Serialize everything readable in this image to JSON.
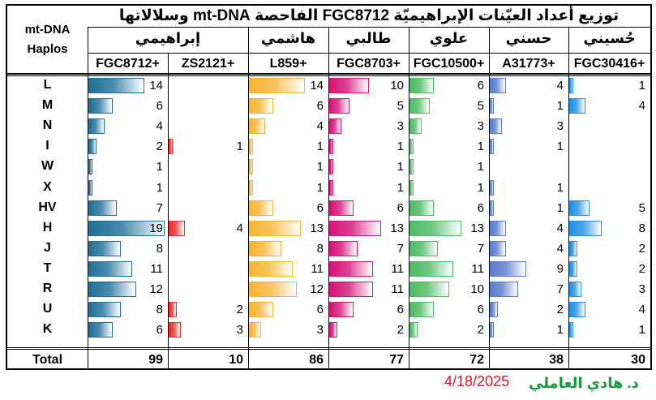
{
  "title": "توزيع أعداد العيّنات الإبراهيميّة FGC8712 الفاحصة mt-DNA وسلالاتها",
  "row_header": "mt-DNA Haplos",
  "row_header_line1": "mt-DNA",
  "row_header_line2": "Haplos",
  "groups": [
    {
      "name": "إبراهيمي",
      "span": 2
    },
    {
      "name": "هاشمي",
      "span": 1
    },
    {
      "name": "طالبي",
      "span": 1
    },
    {
      "name": "علوي",
      "span": 1
    },
    {
      "name": "حسني",
      "span": 1
    },
    {
      "name": "حُسيني",
      "span": 1
    }
  ],
  "total_label": "Total",
  "chart_data": {
    "type": "bar",
    "orientation": "horizontal",
    "categories": [
      "L",
      "M",
      "N",
      "I",
      "W",
      "X",
      "HV",
      "H",
      "J",
      "T",
      "R",
      "U",
      "K"
    ],
    "series": [
      {
        "name": "FGC8712+",
        "values": [
          14,
          6,
          4,
          2,
          1,
          1,
          7,
          19,
          8,
          11,
          12,
          8,
          6
        ],
        "total": 99,
        "color": "#1f6f98"
      },
      {
        "name": "ZS2121+",
        "values": [
          null,
          null,
          null,
          1,
          null,
          null,
          null,
          4,
          null,
          null,
          null,
          2,
          3
        ],
        "total": 10,
        "color": "#ea2f2f"
      },
      {
        "name": "L859+",
        "values": [
          14,
          6,
          4,
          1,
          1,
          1,
          6,
          13,
          8,
          11,
          12,
          6,
          3
        ],
        "total": 86,
        "color": "#f6b433"
      },
      {
        "name": "FGC8703+",
        "values": [
          10,
          5,
          3,
          1,
          1,
          1,
          6,
          13,
          7,
          11,
          11,
          6,
          2
        ],
        "total": 77,
        "color": "#d51478"
      },
      {
        "name": "FGC10500+",
        "values": [
          6,
          5,
          3,
          1,
          1,
          1,
          6,
          13,
          7,
          11,
          10,
          6,
          2
        ],
        "total": 72,
        "color": "#4cbb62"
      },
      {
        "name": "A31773+",
        "values": [
          4,
          1,
          3,
          1,
          null,
          1,
          1,
          4,
          4,
          9,
          7,
          2,
          1
        ],
        "total": 38,
        "color": "#5a7ccb"
      },
      {
        "name": "FGC30416+",
        "values": [
          1,
          4,
          null,
          null,
          null,
          null,
          5,
          8,
          2,
          2,
          3,
          4,
          1
        ],
        "total": 30,
        "color": "#2390e3"
      }
    ]
  },
  "footer": {
    "author": "د. هادي العاملي",
    "date": "4/18/2025",
    "author_color": "#139a3a",
    "date_color": "#e0162f"
  }
}
